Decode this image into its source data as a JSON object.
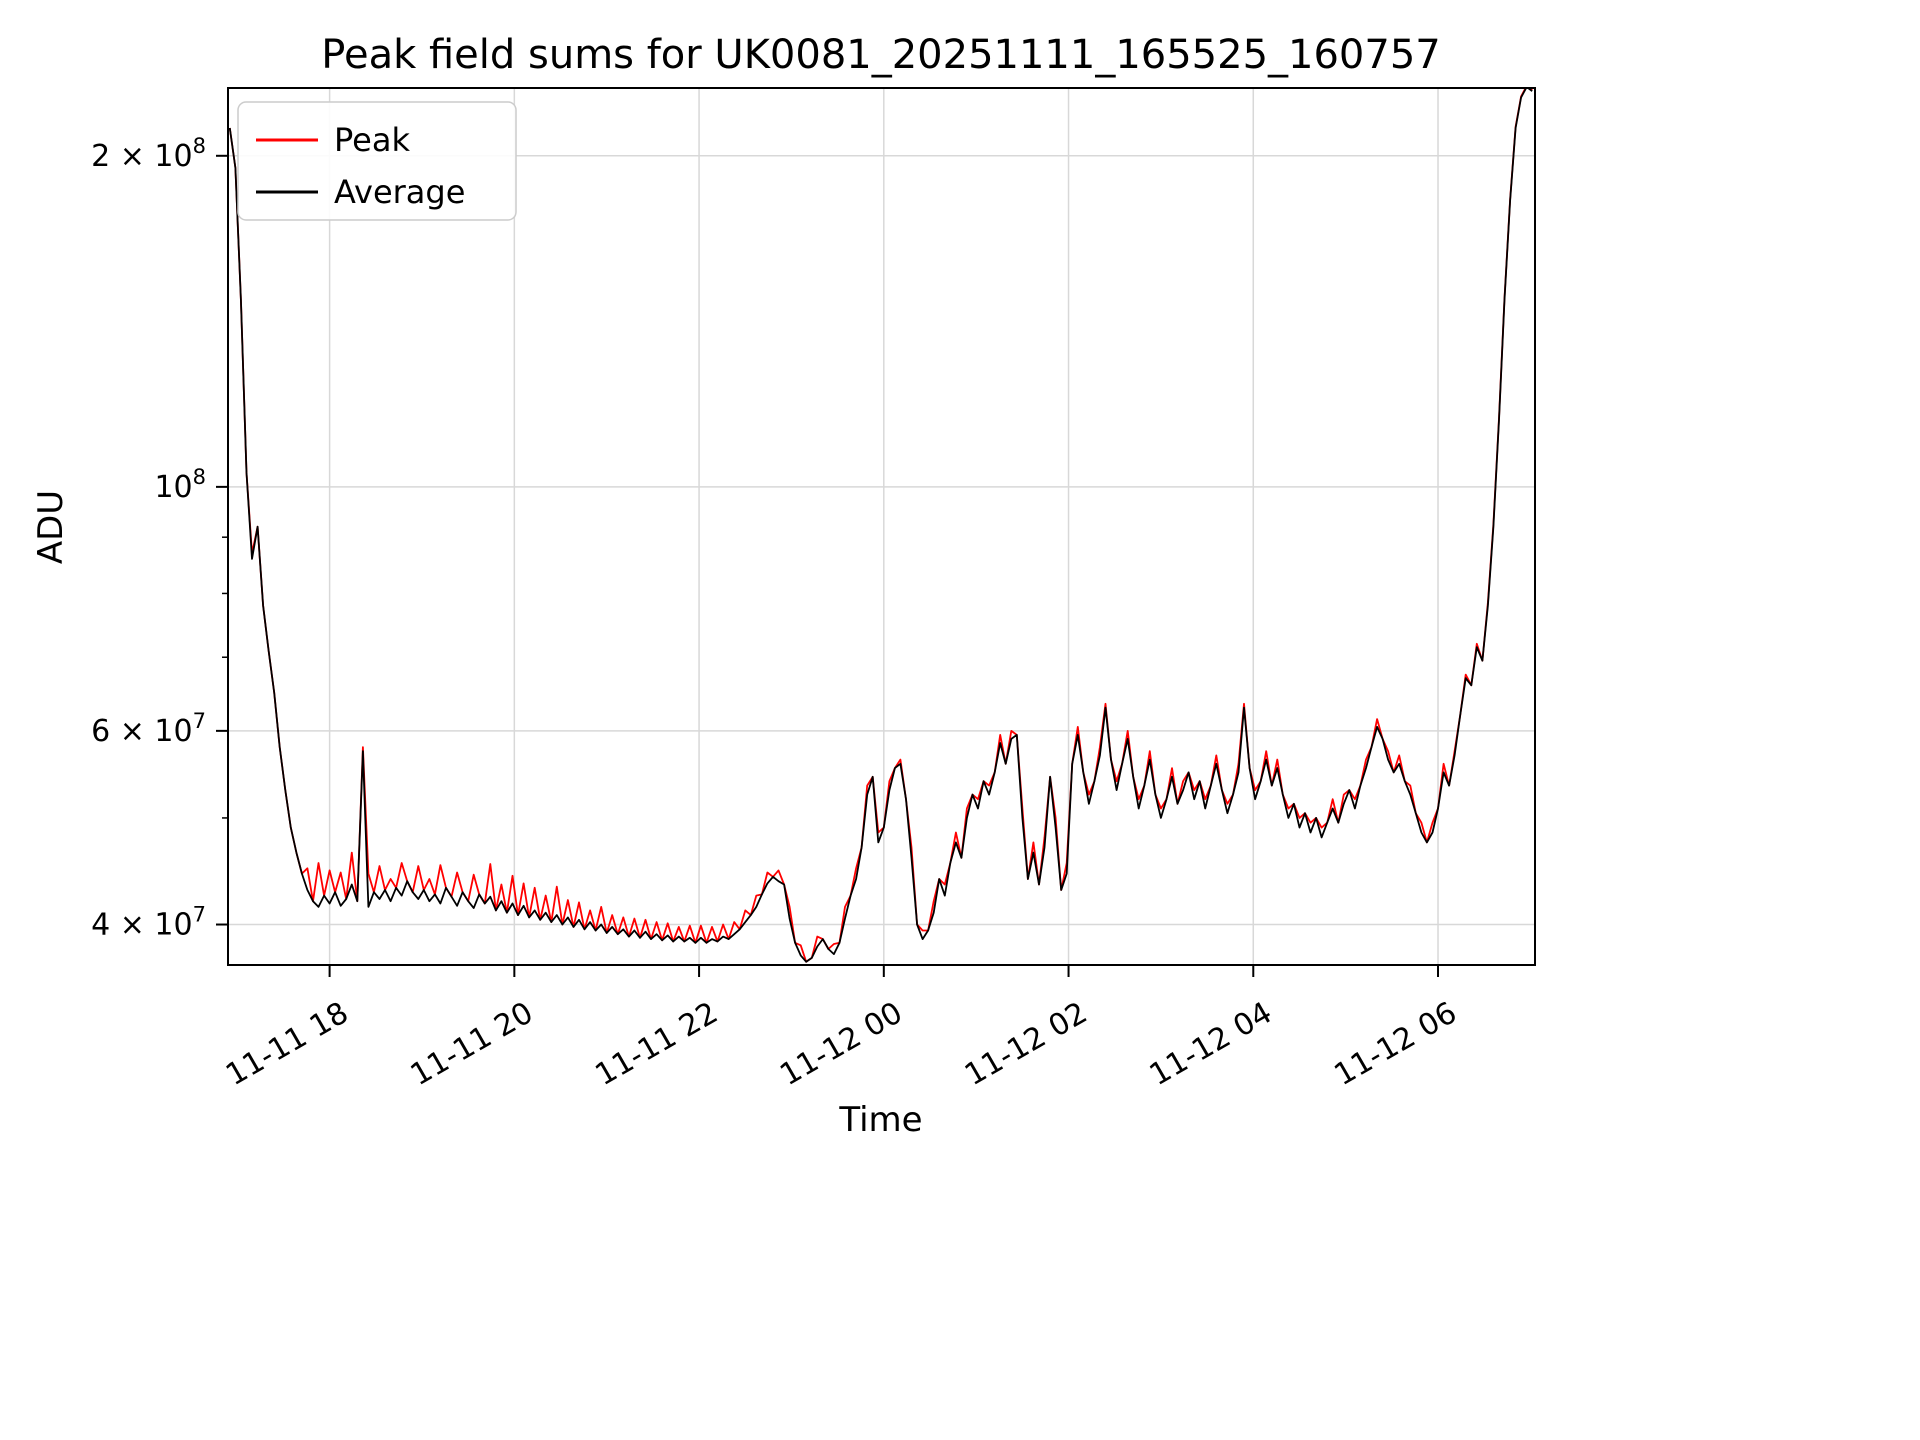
{
  "figure": {
    "title": "Peak field sums for UK0081_20251111_165525_160757",
    "xlabel": "Time",
    "ylabel": "ADU"
  },
  "chart_data": {
    "type": "line",
    "title": "Peak field sums for UK0081_20251111_165525_160757",
    "xlabel": "Time",
    "ylabel": "ADU",
    "y_axis_scale": "log",
    "grid": true,
    "legend_position": "upper left",
    "x_unit": "hours since 2025-11-11 00:00",
    "x_start": 16.92,
    "x_step": 0.06,
    "xlim": [
      16.9,
      31.05
    ],
    "ylim": [
      36750000,
      230500000
    ],
    "y_unit_multiplier": 1000000,
    "x_ticks": [
      {
        "t": 18,
        "label": "11-11 18"
      },
      {
        "t": 20,
        "label": "11-11 20"
      },
      {
        "t": 22,
        "label": "11-11 22"
      },
      {
        "t": 24,
        "label": "11-12 00"
      },
      {
        "t": 26,
        "label": "11-12 02"
      },
      {
        "t": 28,
        "label": "11-12 04"
      },
      {
        "t": 30,
        "label": "11-12 06"
      }
    ],
    "y_ticks": [
      {
        "value": 200000000,
        "label": "2 × 10^8"
      },
      {
        "value": 100000000,
        "label": "10^8"
      },
      {
        "value": 60000000,
        "label": "6 × 10^7"
      },
      {
        "value": 40000000,
        "label": "4 × 10^7"
      }
    ],
    "y_minor_ticks": [
      50000000,
      70000000,
      80000000,
      90000000
    ],
    "series": [
      {
        "name": "Peak",
        "color": "#ff0000",
        "values": [
          212,
          195,
          148,
          103,
          87,
          92,
          78,
          71,
          65,
          58,
          53,
          49,
          46.5,
          44.5,
          45,
          42,
          45.5,
          42.5,
          44.8,
          42.8,
          44.6,
          42.2,
          46.5,
          42,
          58,
          44.5,
          42.8,
          45.2,
          43,
          44,
          43.2,
          45.5,
          43.8,
          42.8,
          45.2,
          43,
          44,
          42.6,
          45.3,
          43.2,
          42.4,
          44.6,
          42.8,
          42,
          44.4,
          42.6,
          41.8,
          45.4,
          41.2,
          43.5,
          41,
          44.3,
          40.8,
          43.6,
          40.6,
          43.2,
          40.4,
          42.5,
          40.2,
          43.3,
          40,
          42.1,
          39.8,
          41.9,
          39.6,
          41.2,
          39.5,
          41.5,
          39.3,
          40.8,
          39.2,
          40.6,
          39,
          40.5,
          38.9,
          40.4,
          38.8,
          40.2,
          38.7,
          40.1,
          38.6,
          39.8,
          38.6,
          39.9,
          38.5,
          39.9,
          38.5,
          39.8,
          38.6,
          40,
          38.8,
          40.2,
          39.6,
          41.2,
          40.8,
          42.5,
          42.6,
          44.6,
          44.2,
          44.8,
          43.5,
          41.5,
          38.5,
          38.3,
          37,
          37.3,
          39,
          38.8,
          38,
          38.4,
          38.5,
          41.5,
          42.5,
          45,
          47,
          53.5,
          54.5,
          48.5,
          49,
          54,
          55.5,
          56.5,
          52,
          47,
          40,
          39.5,
          39.5,
          42,
          44,
          43.5,
          45.5,
          48.5,
          46,
          51,
          52.5,
          52,
          54,
          53.5,
          55,
          59.5,
          56,
          60,
          59.5,
          51,
          44,
          47.5,
          43.5,
          48,
          54.5,
          50,
          43,
          45.5,
          56,
          60.5,
          55,
          52.5,
          54,
          58,
          63.5,
          56.5,
          54,
          56,
          60,
          54.5,
          52,
          53.5,
          57.5,
          52.5,
          51,
          52,
          55.5,
          51.5,
          54,
          55,
          53,
          54,
          52,
          53.5,
          57,
          53,
          51.5,
          52.5,
          56,
          63.5,
          55.5,
          53,
          54,
          57.5,
          53.5,
          56.5,
          52.5,
          51,
          51.5,
          50,
          50.5,
          49.5,
          50,
          49,
          49.5,
          52,
          49.5,
          52.5,
          53,
          52,
          53.5,
          56.5,
          58,
          61.5,
          59,
          57.5,
          55,
          57,
          54,
          53.5,
          50.5,
          49.5,
          47.5,
          49.5,
          51,
          56,
          53.5,
          57.5,
          62,
          67.5,
          66,
          72,
          69.5,
          78.5,
          92.5,
          115.5,
          148.5,
          182.5,
          212.5,
          226.5,
          231.5,
          229.5
        ]
      },
      {
        "name": "Average",
        "color": "#000000",
        "values": [
          212,
          195,
          148,
          103,
          86,
          92,
          78,
          71,
          65,
          58,
          53,
          49,
          46.5,
          44.5,
          43,
          42,
          41.5,
          42.5,
          41.8,
          42.8,
          41.6,
          42.2,
          43.5,
          42,
          57.5,
          41.5,
          42.8,
          42.2,
          43,
          42,
          43.2,
          42.5,
          43.8,
          42.8,
          42.2,
          43,
          42,
          42.6,
          41.8,
          43.2,
          42.4,
          41.6,
          42.8,
          42,
          41.4,
          42.6,
          41.8,
          42.4,
          41.2,
          42,
          41,
          41.8,
          40.8,
          41.6,
          40.6,
          41.2,
          40.4,
          41,
          40.2,
          40.8,
          40,
          40.6,
          39.8,
          40.4,
          39.6,
          40.2,
          39.5,
          40,
          39.3,
          39.8,
          39.2,
          39.6,
          39,
          39.5,
          38.9,
          39.4,
          38.8,
          39.2,
          38.7,
          39.1,
          38.6,
          39,
          38.6,
          38.9,
          38.5,
          38.9,
          38.5,
          38.8,
          38.6,
          39,
          38.8,
          39.2,
          39.6,
          40.2,
          40.8,
          41.5,
          42.6,
          43.6,
          44.2,
          43.8,
          43.5,
          40.5,
          38.5,
          37.5,
          37,
          37.3,
          38.2,
          38.8,
          38,
          37.6,
          38.5,
          40.5,
          42.5,
          44,
          47,
          52.5,
          54.5,
          47.5,
          49,
          53,
          55.5,
          56,
          52,
          46,
          40,
          38.8,
          39.5,
          41,
          44,
          42.5,
          45.5,
          47.5,
          46,
          50,
          52.5,
          51,
          54,
          52.5,
          55,
          58.5,
          56,
          59,
          59.5,
          50,
          44,
          46.5,
          43.5,
          47,
          54.5,
          49,
          43,
          44.5,
          56,
          59.5,
          55,
          51.5,
          54,
          57,
          63,
          56.5,
          53,
          56,
          59,
          54.5,
          51,
          53.5,
          56.5,
          52.5,
          50,
          52,
          54.5,
          51.5,
          53,
          55,
          52,
          54,
          51,
          53.5,
          56,
          53,
          50.5,
          52.5,
          55,
          63,
          55.5,
          52,
          54,
          56.5,
          53.5,
          55.5,
          52.5,
          50,
          51.5,
          49,
          50.5,
          48.5,
          50,
          48,
          49.5,
          51,
          49.5,
          51.5,
          53,
          51,
          53.5,
          55.5,
          58,
          60.5,
          59,
          56.5,
          55,
          56,
          54,
          52.5,
          50.5,
          48.5,
          47.5,
          48.5,
          51,
          55,
          53.5,
          57,
          62,
          67,
          66,
          71.5,
          69.5,
          78,
          92,
          115,
          148,
          182,
          212,
          226,
          231,
          229
        ]
      }
    ]
  }
}
